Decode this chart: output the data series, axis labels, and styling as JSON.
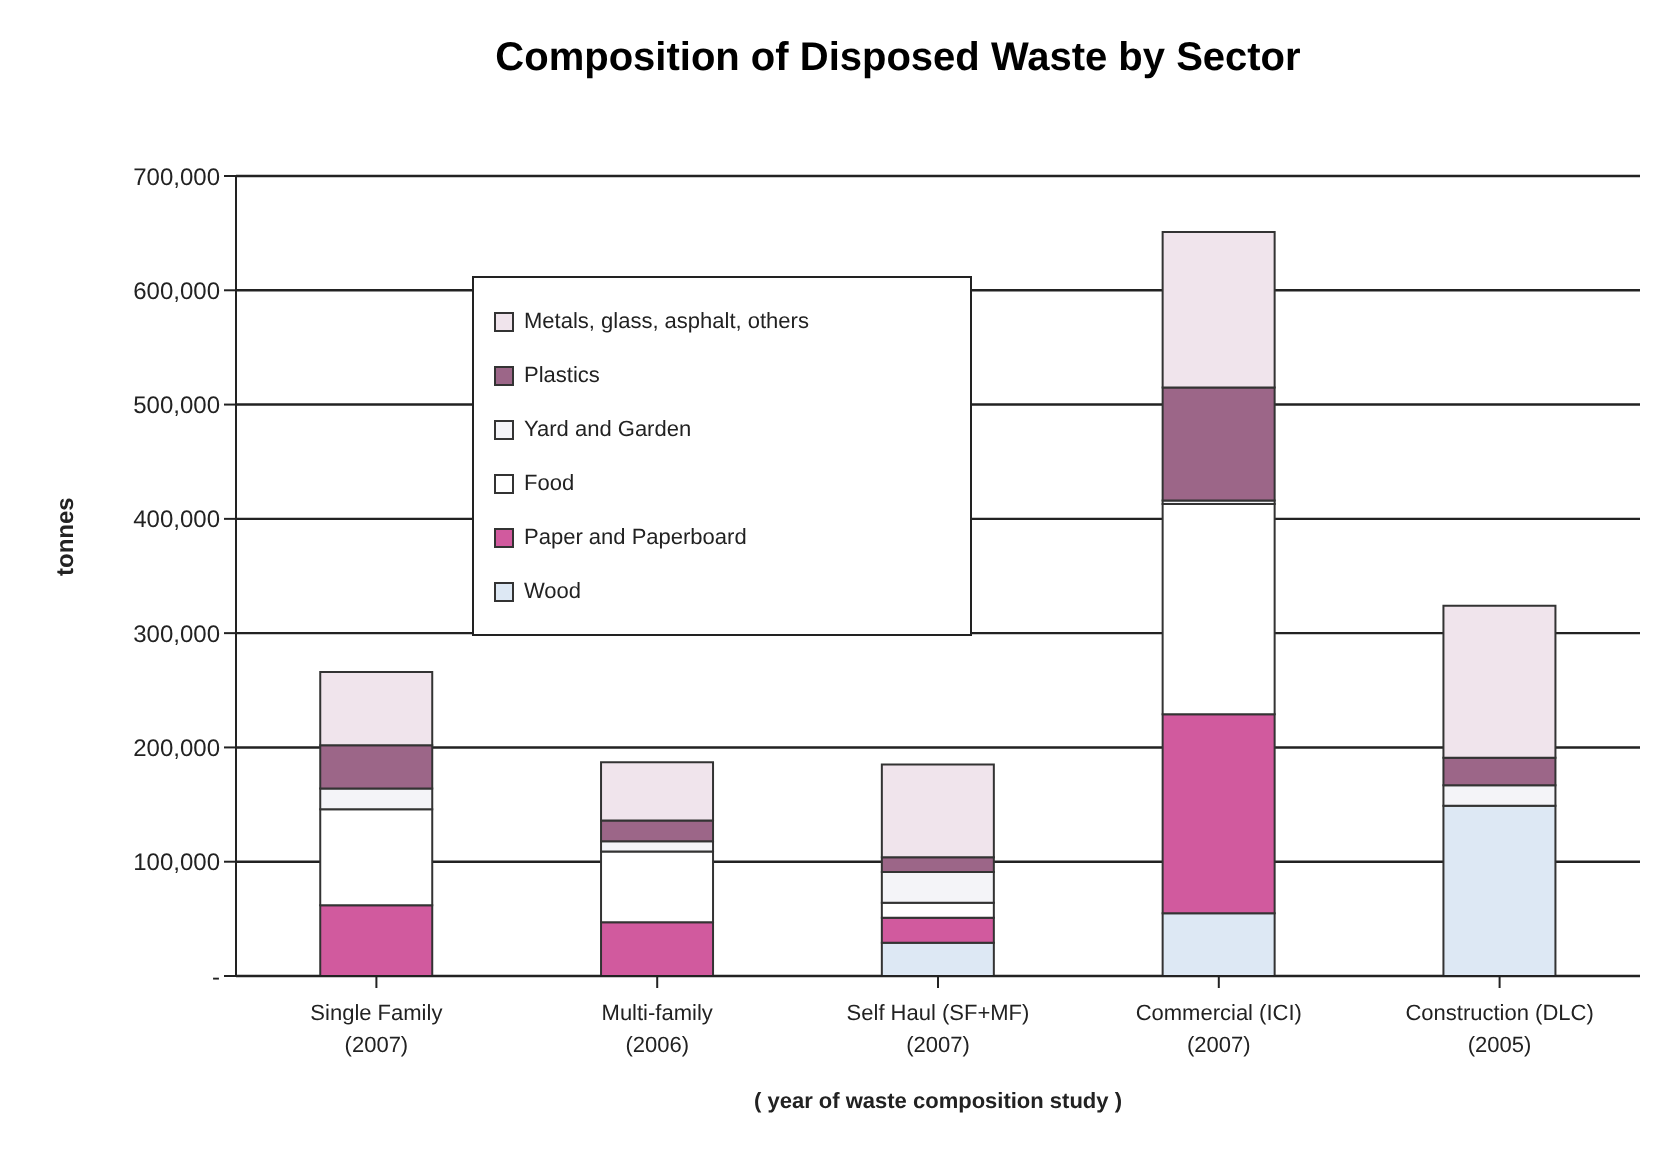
{
  "chart_data": {
    "type": "bar",
    "stacked": true,
    "title": "Composition of Disposed Waste by Sector",
    "xlabel": "( year of waste composition study )",
    "ylabel": "tonnes",
    "categories": [
      "Single Family (2007)",
      "Multi-family (2006)",
      "Self Haul (SF+MF) (2007)",
      "Commercial (ICI) (2007)",
      "Construction (DLC) (2005)"
    ],
    "series": [
      {
        "name": "Wood",
        "color": "#dde8f4",
        "values": [
          null,
          null,
          29000,
          55000,
          149000
        ]
      },
      {
        "name": "Paper and Paperboard",
        "color": "#d15a9e",
        "values": [
          62000,
          47000,
          22000,
          174000,
          0
        ]
      },
      {
        "name": "Food",
        "color": "#ffffff",
        "values": [
          84000,
          62000,
          13000,
          184000,
          0
        ]
      },
      {
        "name": "Yard and Garden",
        "color": "#f4f4f8",
        "values": [
          18000,
          9000,
          27000,
          3000,
          18000
        ]
      },
      {
        "name": "Plastics",
        "color": "#9c6688",
        "values": [
          38000,
          18000,
          13000,
          99000,
          24000
        ]
      },
      {
        "name": "Metals, glass, asphalt, others",
        "color": "#f0e4ec",
        "values": [
          64000,
          51000,
          81000,
          136000,
          133000
        ]
      }
    ],
    "ylim": [
      0,
      700000
    ],
    "yticks": [
      {
        "value": 0,
        "label": "-"
      },
      {
        "value": 100000,
        "label": "100,000"
      },
      {
        "value": 200000,
        "label": "200,000"
      },
      {
        "value": 300000,
        "label": "300,000"
      },
      {
        "value": 400000,
        "label": "400,000"
      },
      {
        "value": 500000,
        "label": "500,000"
      },
      {
        "value": 600000,
        "label": "600,000"
      },
      {
        "value": 700000,
        "label": "700,000"
      }
    ],
    "grid": "y",
    "legend": "top left"
  }
}
